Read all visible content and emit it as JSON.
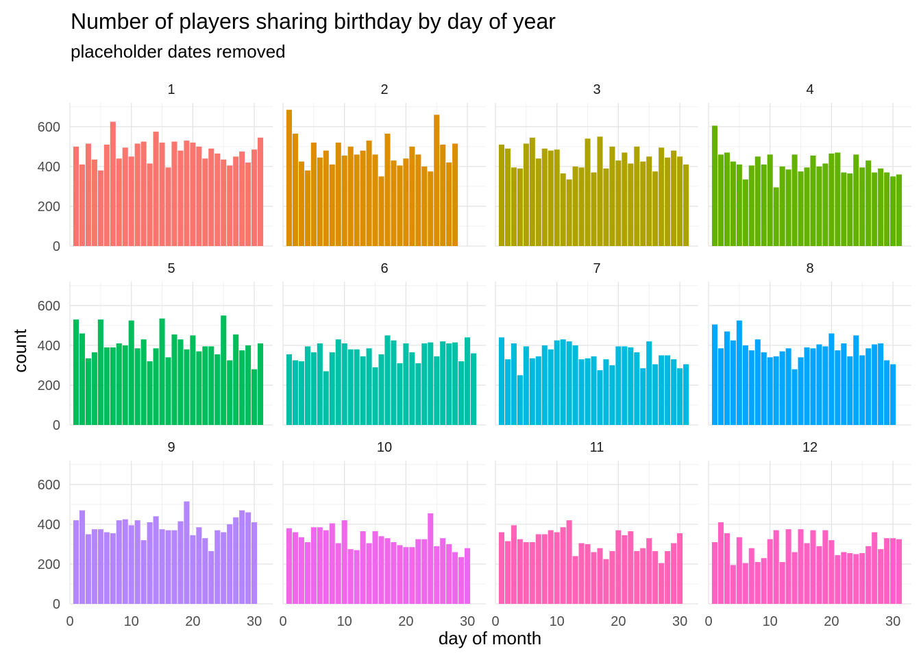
{
  "title": "Number of players sharing birthday by day of year",
  "subtitle": "placeholder dates removed",
  "chart_data": {
    "type": "bar",
    "facet_by": "month",
    "xlabel": "day of month",
    "ylabel": "count",
    "xlim": [
      0,
      33
    ],
    "ylim": [
      0,
      720
    ],
    "x_ticks": [
      "0",
      "10",
      "20",
      "30"
    ],
    "y_ticks": [
      "0",
      "200",
      "400",
      "600"
    ],
    "grid": true,
    "panels": [
      {
        "label": "1",
        "color": "#F8766D",
        "values": [
          500,
          410,
          515,
          435,
          380,
          510,
          625,
          440,
          495,
          450,
          515,
          525,
          415,
          575,
          520,
          395,
          525,
          480,
          530,
          520,
          500,
          440,
          490,
          465,
          435,
          405,
          450,
          475,
          420,
          485,
          545
        ]
      },
      {
        "label": "2",
        "color": "#DB8E00",
        "values": [
          685,
          565,
          425,
          380,
          520,
          445,
          480,
          410,
          520,
          455,
          500,
          460,
          480,
          530,
          460,
          350,
          565,
          430,
          405,
          440,
          500,
          460,
          400,
          375,
          660,
          510,
          420,
          515
        ]
      },
      {
        "label": "3",
        "color": "#AEA200",
        "values": [
          510,
          490,
          395,
          390,
          515,
          545,
          440,
          490,
          480,
          485,
          365,
          335,
          400,
          395,
          540,
          370,
          550,
          390,
          500,
          430,
          470,
          415,
          500,
          425,
          450,
          375,
          495,
          445,
          480,
          450,
          410
        ]
      },
      {
        "label": "4",
        "color": "#64B200",
        "values": [
          605,
          460,
          470,
          425,
          410,
          335,
          405,
          450,
          410,
          460,
          295,
          400,
          385,
          460,
          375,
          395,
          455,
          400,
          415,
          465,
          470,
          370,
          365,
          460,
          395,
          430,
          370,
          390,
          370,
          350,
          360
        ]
      },
      {
        "label": "5",
        "color": "#00BD5C",
        "values": [
          530,
          460,
          335,
          365,
          530,
          390,
          390,
          410,
          400,
          525,
          385,
          430,
          320,
          385,
          535,
          340,
          455,
          430,
          380,
          450,
          370,
          395,
          395,
          355,
          550,
          325,
          455,
          375,
          400,
          280,
          410
        ]
      },
      {
        "label": "6",
        "color": "#00C1A7",
        "values": [
          355,
          325,
          320,
          395,
          365,
          410,
          270,
          365,
          430,
          410,
          380,
          380,
          345,
          385,
          290,
          355,
          450,
          425,
          310,
          410,
          365,
          310,
          410,
          415,
          345,
          420,
          410,
          415,
          320,
          440,
          360
        ]
      },
      {
        "label": "7",
        "color": "#00BADE",
        "values": [
          440,
          330,
          410,
          250,
          395,
          335,
          345,
          400,
          380,
          425,
          430,
          420,
          400,
          330,
          335,
          345,
          275,
          330,
          300,
          395,
          395,
          390,
          365,
          285,
          420,
          305,
          350,
          350,
          330,
          285,
          305
        ]
      },
      {
        "label": "8",
        "color": "#00A6FF",
        "values": [
          505,
          385,
          470,
          425,
          525,
          400,
          375,
          430,
          365,
          340,
          345,
          370,
          385,
          280,
          340,
          390,
          385,
          405,
          395,
          460,
          375,
          410,
          345,
          450,
          350,
          385,
          405,
          410,
          325,
          305
        ]
      },
      {
        "label": "9",
        "color": "#B385FF",
        "values": [
          420,
          470,
          350,
          375,
          375,
          360,
          355,
          420,
          425,
          395,
          420,
          320,
          410,
          440,
          375,
          370,
          370,
          415,
          515,
          345,
          385,
          330,
          265,
          370,
          360,
          400,
          435,
          470,
          460,
          410
        ]
      },
      {
        "label": "10",
        "color": "#EF67EB",
        "values": [
          380,
          360,
          335,
          310,
          385,
          385,
          370,
          405,
          305,
          420,
          275,
          270,
          365,
          305,
          365,
          340,
          330,
          310,
          295,
          285,
          285,
          325,
          325,
          455,
          290,
          330,
          300,
          260,
          235,
          280
        ]
      },
      {
        "label": "11",
        "color": "#FF63B6",
        "values": [
          360,
          315,
          395,
          325,
          310,
          310,
          350,
          350,
          370,
          360,
          385,
          420,
          240,
          305,
          300,
          260,
          280,
          225,
          265,
          370,
          345,
          365,
          265,
          280,
          330,
          265,
          205,
          265,
          305,
          355
        ]
      },
      {
        "label": "12",
        "color": "#FF61C3",
        "values": [
          310,
          410,
          355,
          195,
          335,
          205,
          280,
          210,
          230,
          325,
          370,
          210,
          375,
          260,
          375,
          305,
          370,
          290,
          370,
          320,
          245,
          260,
          255,
          250,
          255,
          290,
          360,
          275,
          330,
          330,
          325
        ]
      }
    ]
  }
}
